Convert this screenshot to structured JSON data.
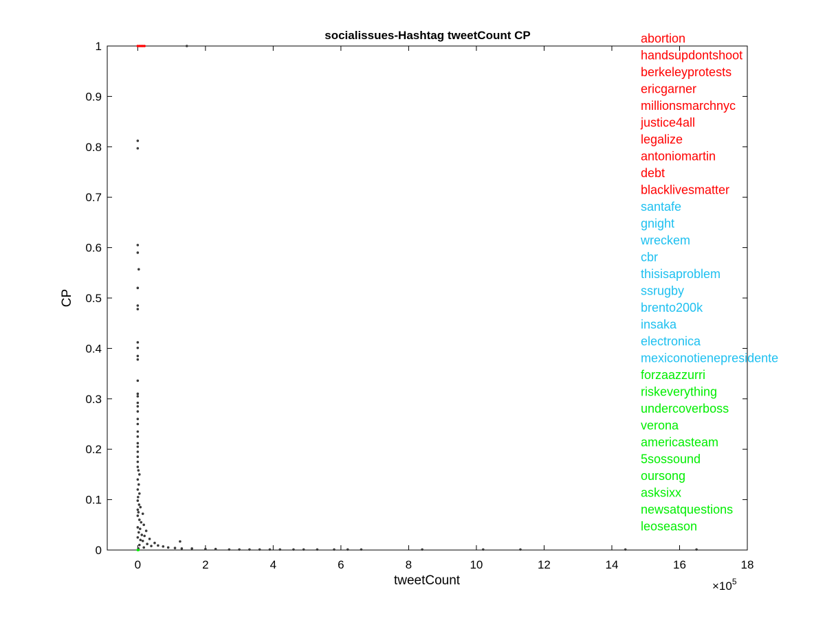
{
  "chart_data": {
    "type": "scatter",
    "title": "socialissues-Hashtag tweetCount CP",
    "xlabel": "tweetCount",
    "ylabel": "CP",
    "x_exponent_label": "×10",
    "x_exponent_power": "5",
    "xlim": [
      -0.9,
      18
    ],
    "ylim": [
      0,
      1
    ],
    "xticks": [
      0,
      2,
      4,
      6,
      8,
      10,
      12,
      14,
      16,
      18
    ],
    "xtick_labels": [
      "0",
      "2",
      "4",
      "6",
      "8",
      "10",
      "12",
      "14",
      "16",
      "18"
    ],
    "yticks": [
      0,
      0.1,
      0.2,
      0.3,
      0.4,
      0.5,
      0.6,
      0.7,
      0.8,
      0.9,
      1
    ],
    "ytick_labels": [
      "0",
      "0.1",
      "0.2",
      "0.3",
      "0.4",
      "0.5",
      "0.6",
      "0.7",
      "0.8",
      "0.9",
      "1"
    ],
    "grid": false,
    "colors": {
      "points": "#3a3a3a",
      "top_group": "#ff0000",
      "middle_group": "#1ec0f0",
      "bottom_group": "#00ee00",
      "axis": "#000000"
    },
    "series": [
      {
        "color": "#3a3a3a",
        "points": [
          [
            1.45,
            1.0
          ],
          [
            0.0,
            0.812
          ],
          [
            0.0,
            0.797
          ],
          [
            0.0,
            0.605
          ],
          [
            0.0,
            0.59
          ],
          [
            0.03,
            0.557
          ],
          [
            0.0,
            0.52
          ],
          [
            0.0,
            0.485
          ],
          [
            0.0,
            0.478
          ],
          [
            0.0,
            0.412
          ],
          [
            0.0,
            0.401
          ],
          [
            0.0,
            0.385
          ],
          [
            0.0,
            0.378
          ],
          [
            0.0,
            0.336
          ],
          [
            0.0,
            0.31
          ],
          [
            0.0,
            0.305
          ],
          [
            0.0,
            0.292
          ],
          [
            0.0,
            0.285
          ],
          [
            0.0,
            0.275
          ],
          [
            0.0,
            0.26
          ],
          [
            0.0,
            0.25
          ],
          [
            0.0,
            0.235
          ],
          [
            0.0,
            0.225
          ],
          [
            0.0,
            0.212
          ],
          [
            0.0,
            0.205
          ],
          [
            0.0,
            0.195
          ],
          [
            0.0,
            0.185
          ],
          [
            0.0,
            0.175
          ],
          [
            0.0,
            0.165
          ],
          [
            0.02,
            0.158
          ],
          [
            0.05,
            0.15
          ],
          [
            0.0,
            0.14
          ],
          [
            0.03,
            0.13
          ],
          [
            0.0,
            0.12
          ],
          [
            0.05,
            0.112
          ],
          [
            0.01,
            0.105
          ],
          [
            0.0,
            0.098
          ],
          [
            0.04,
            0.09
          ],
          [
            0.08,
            0.085
          ],
          [
            0.0,
            0.08
          ],
          [
            0.02,
            0.075
          ],
          [
            0.15,
            0.072
          ],
          [
            0.0,
            0.068
          ],
          [
            0.05,
            0.06
          ],
          [
            0.1,
            0.055
          ],
          [
            0.18,
            0.05
          ],
          [
            0.0,
            0.045
          ],
          [
            0.07,
            0.042
          ],
          [
            0.25,
            0.038
          ],
          [
            0.03,
            0.035
          ],
          [
            0.12,
            0.03
          ],
          [
            0.2,
            0.028
          ],
          [
            0.0,
            0.025
          ],
          [
            0.35,
            0.022
          ],
          [
            0.08,
            0.02
          ],
          [
            0.15,
            0.018
          ],
          [
            1.25,
            0.017
          ],
          [
            0.5,
            0.014
          ],
          [
            0.28,
            0.012
          ],
          [
            0.05,
            0.01
          ],
          [
            0.6,
            0.009
          ],
          [
            0.4,
            0.008
          ],
          [
            0.75,
            0.007
          ],
          [
            0.9,
            0.005
          ],
          [
            0.18,
            0.005
          ],
          [
            1.1,
            0.004
          ],
          [
            1.3,
            0.003
          ],
          [
            1.6,
            0.003
          ],
          [
            0.02,
            0.003
          ],
          [
            2.0,
            0.002
          ],
          [
            2.3,
            0.002
          ],
          [
            2.7,
            0.001
          ],
          [
            3.0,
            0.001
          ],
          [
            3.3,
            0.001
          ],
          [
            3.6,
            0.001
          ],
          [
            3.9,
            0.001
          ],
          [
            4.2,
            0.001
          ],
          [
            4.6,
            0.001
          ],
          [
            4.9,
            0.001
          ],
          [
            5.3,
            0.001
          ],
          [
            5.8,
            0.001
          ],
          [
            6.2,
            0.001
          ],
          [
            6.6,
            0.001
          ],
          [
            8.4,
            0.001
          ],
          [
            10.2,
            0.001
          ],
          [
            11.3,
            0.001
          ],
          [
            14.4,
            0.001
          ],
          [
            16.5,
            0.001
          ]
        ]
      },
      {
        "color": "#ff0000",
        "points": [
          [
            0.0,
            1.0
          ],
          [
            0.05,
            1.0
          ],
          [
            0.1,
            1.0
          ],
          [
            0.15,
            1.0
          ],
          [
            0.2,
            1.0
          ]
        ]
      },
      {
        "color": "#00ee00",
        "points": [
          [
            0.0,
            0.0
          ],
          [
            0.02,
            0.0
          ]
        ]
      }
    ],
    "annotations": [
      {
        "text": "abortion",
        "color": "#ff0000"
      },
      {
        "text": "handsupdontshoot",
        "color": "#ff0000"
      },
      {
        "text": "berkeleyprotests",
        "color": "#ff0000"
      },
      {
        "text": "ericgarner",
        "color": "#ff0000"
      },
      {
        "text": "millionsmarchnyc",
        "color": "#ff0000"
      },
      {
        "text": "justice4all",
        "color": "#ff0000"
      },
      {
        "text": "legalize",
        "color": "#ff0000"
      },
      {
        "text": "antoniomartin",
        "color": "#ff0000"
      },
      {
        "text": "debt",
        "color": "#ff0000"
      },
      {
        "text": "blacklivesmatter",
        "color": "#ff0000"
      },
      {
        "text": "santafe",
        "color": "#1ec0f0"
      },
      {
        "text": "gnight",
        "color": "#1ec0f0"
      },
      {
        "text": "wreckem",
        "color": "#1ec0f0"
      },
      {
        "text": "cbr",
        "color": "#1ec0f0"
      },
      {
        "text": "thisisaproblem",
        "color": "#1ec0f0"
      },
      {
        "text": "ssrugby",
        "color": "#1ec0f0"
      },
      {
        "text": "brento200k",
        "color": "#1ec0f0"
      },
      {
        "text": "insaka",
        "color": "#1ec0f0"
      },
      {
        "text": "electronica",
        "color": "#1ec0f0"
      },
      {
        "text": "mexiconotienepresidente",
        "color": "#1ec0f0"
      },
      {
        "text": "forzaazzurri",
        "color": "#00ee00"
      },
      {
        "text": "riskeverything",
        "color": "#00ee00"
      },
      {
        "text": "undercoverboss",
        "color": "#00ee00"
      },
      {
        "text": "verona",
        "color": "#00ee00"
      },
      {
        "text": "americasteam",
        "color": "#00ee00"
      },
      {
        "text": "5sossound",
        "color": "#00ee00"
      },
      {
        "text": "oursong",
        "color": "#00ee00"
      },
      {
        "text": "asksixx",
        "color": "#00ee00"
      },
      {
        "text": "newsatquestions",
        "color": "#00ee00"
      },
      {
        "text": "leoseason",
        "color": "#00ee00"
      }
    ]
  }
}
